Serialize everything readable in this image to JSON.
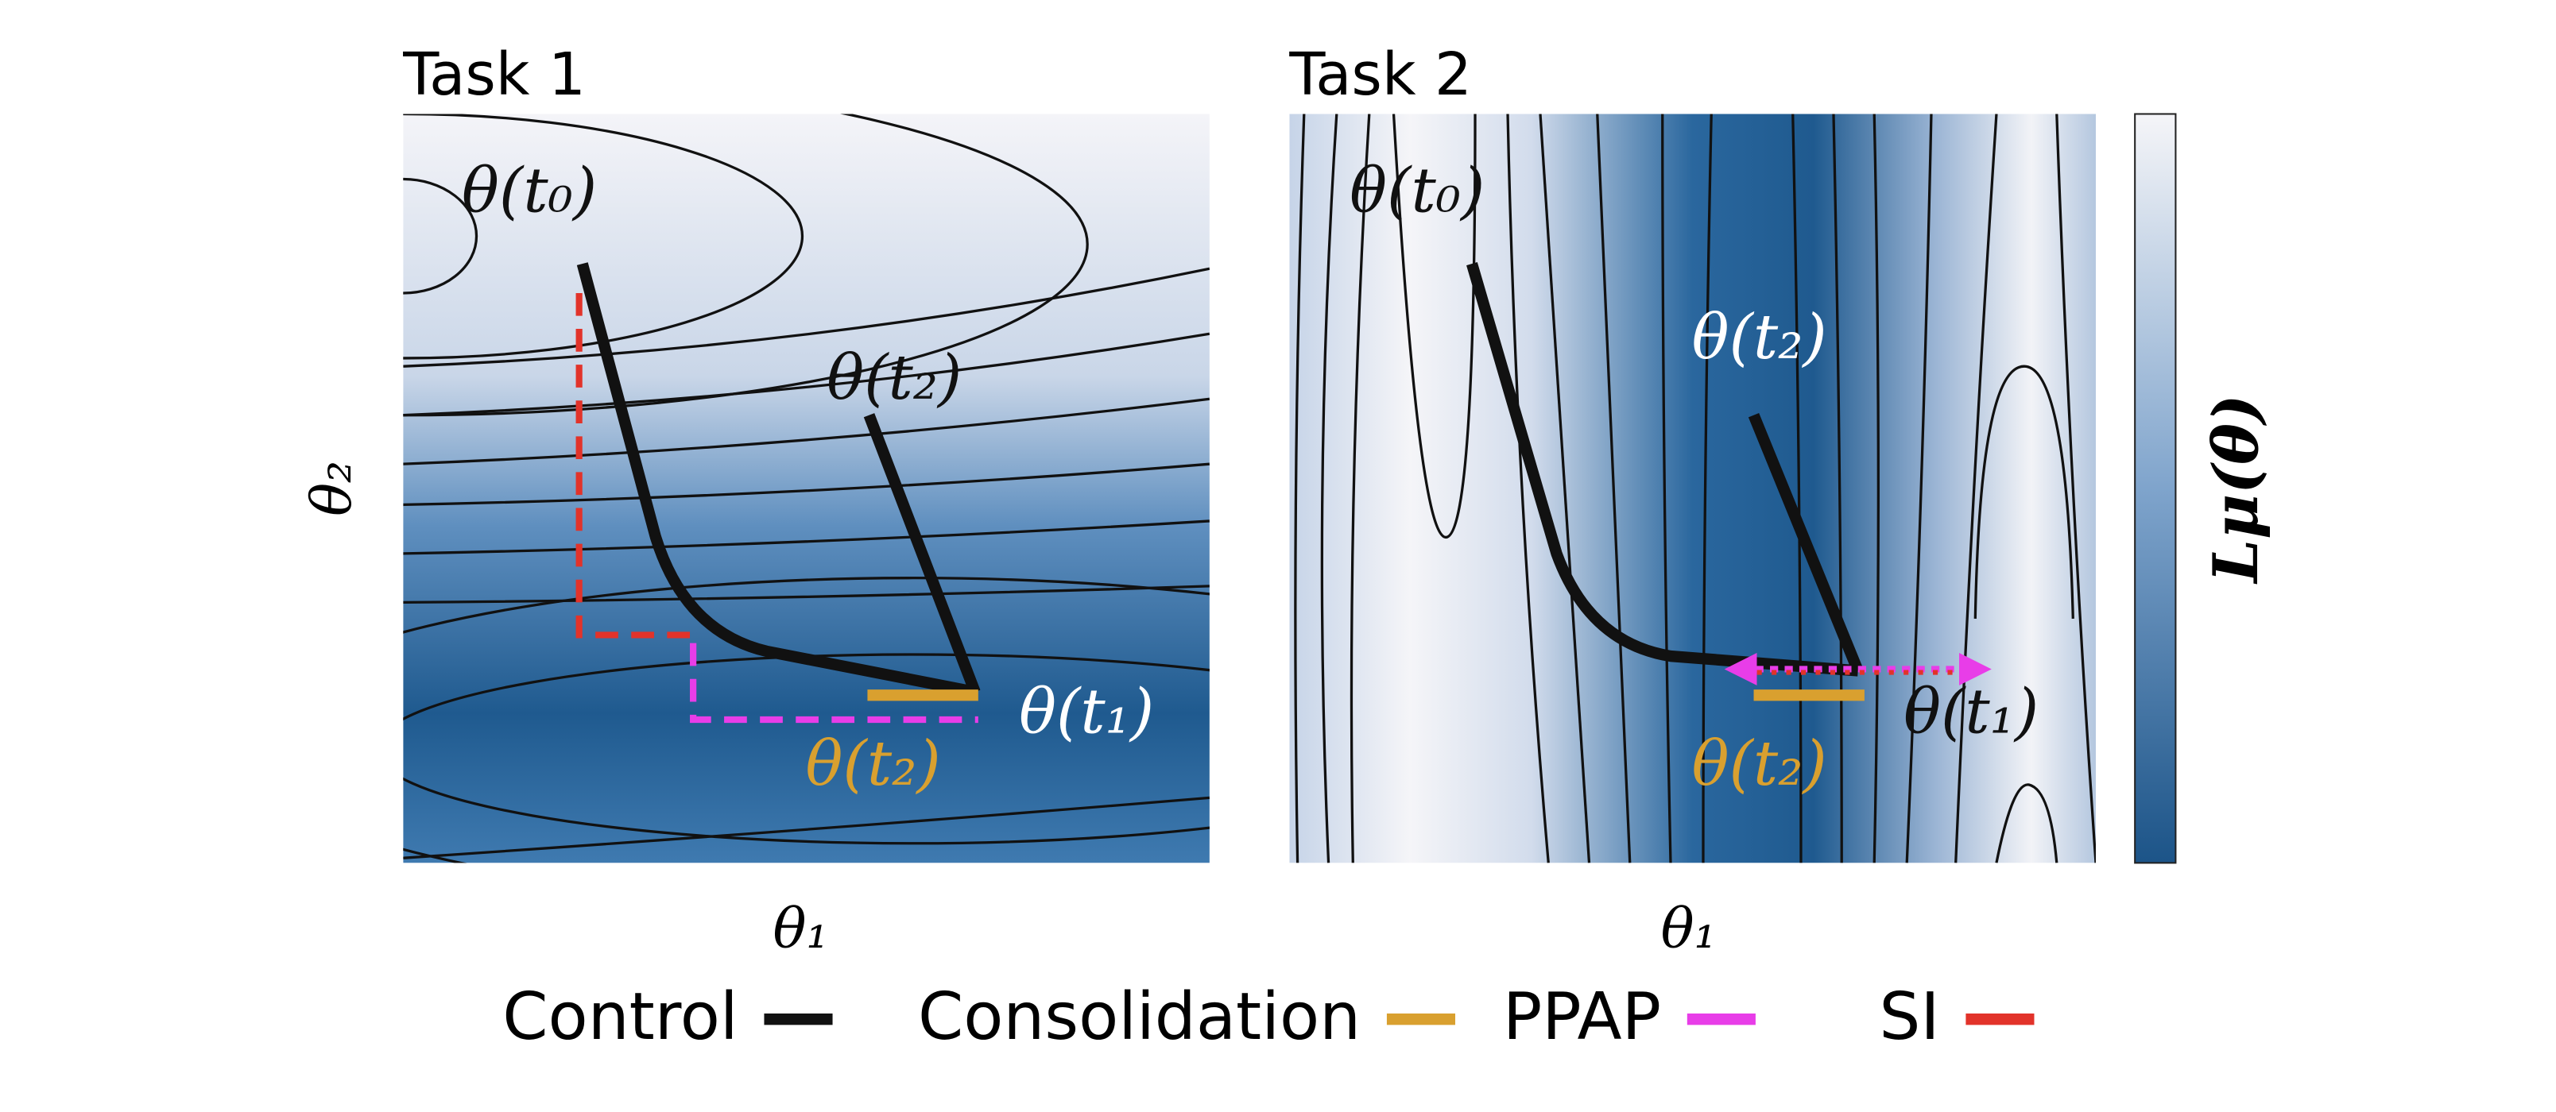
{
  "panels": [
    {
      "title": "Task 1",
      "x_label": "θ₁",
      "y_label": "θ₂",
      "labels": {
        "start": "θ(t₀)",
        "end_task2": "θ(t₂)",
        "end_task1": "θ(t₁)",
        "consolidation": "θ(t₂)"
      }
    },
    {
      "title": "Task 2",
      "x_label": "θ₁",
      "labels": {
        "start": "θ(t₀)",
        "end_task2": "θ(t₂)",
        "end_task1": "θ(t₁)",
        "consolidation": "θ(t₂)"
      }
    }
  ],
  "colorbar": {
    "label": "Lμ(θ)"
  },
  "legend": [
    {
      "name": "Control",
      "color": "#111111"
    },
    {
      "name": "Consolidation",
      "color": "#d9a02f"
    },
    {
      "name": "PPAP",
      "color": "#e83de8"
    },
    {
      "name": "SI",
      "color": "#e2332a"
    }
  ]
}
